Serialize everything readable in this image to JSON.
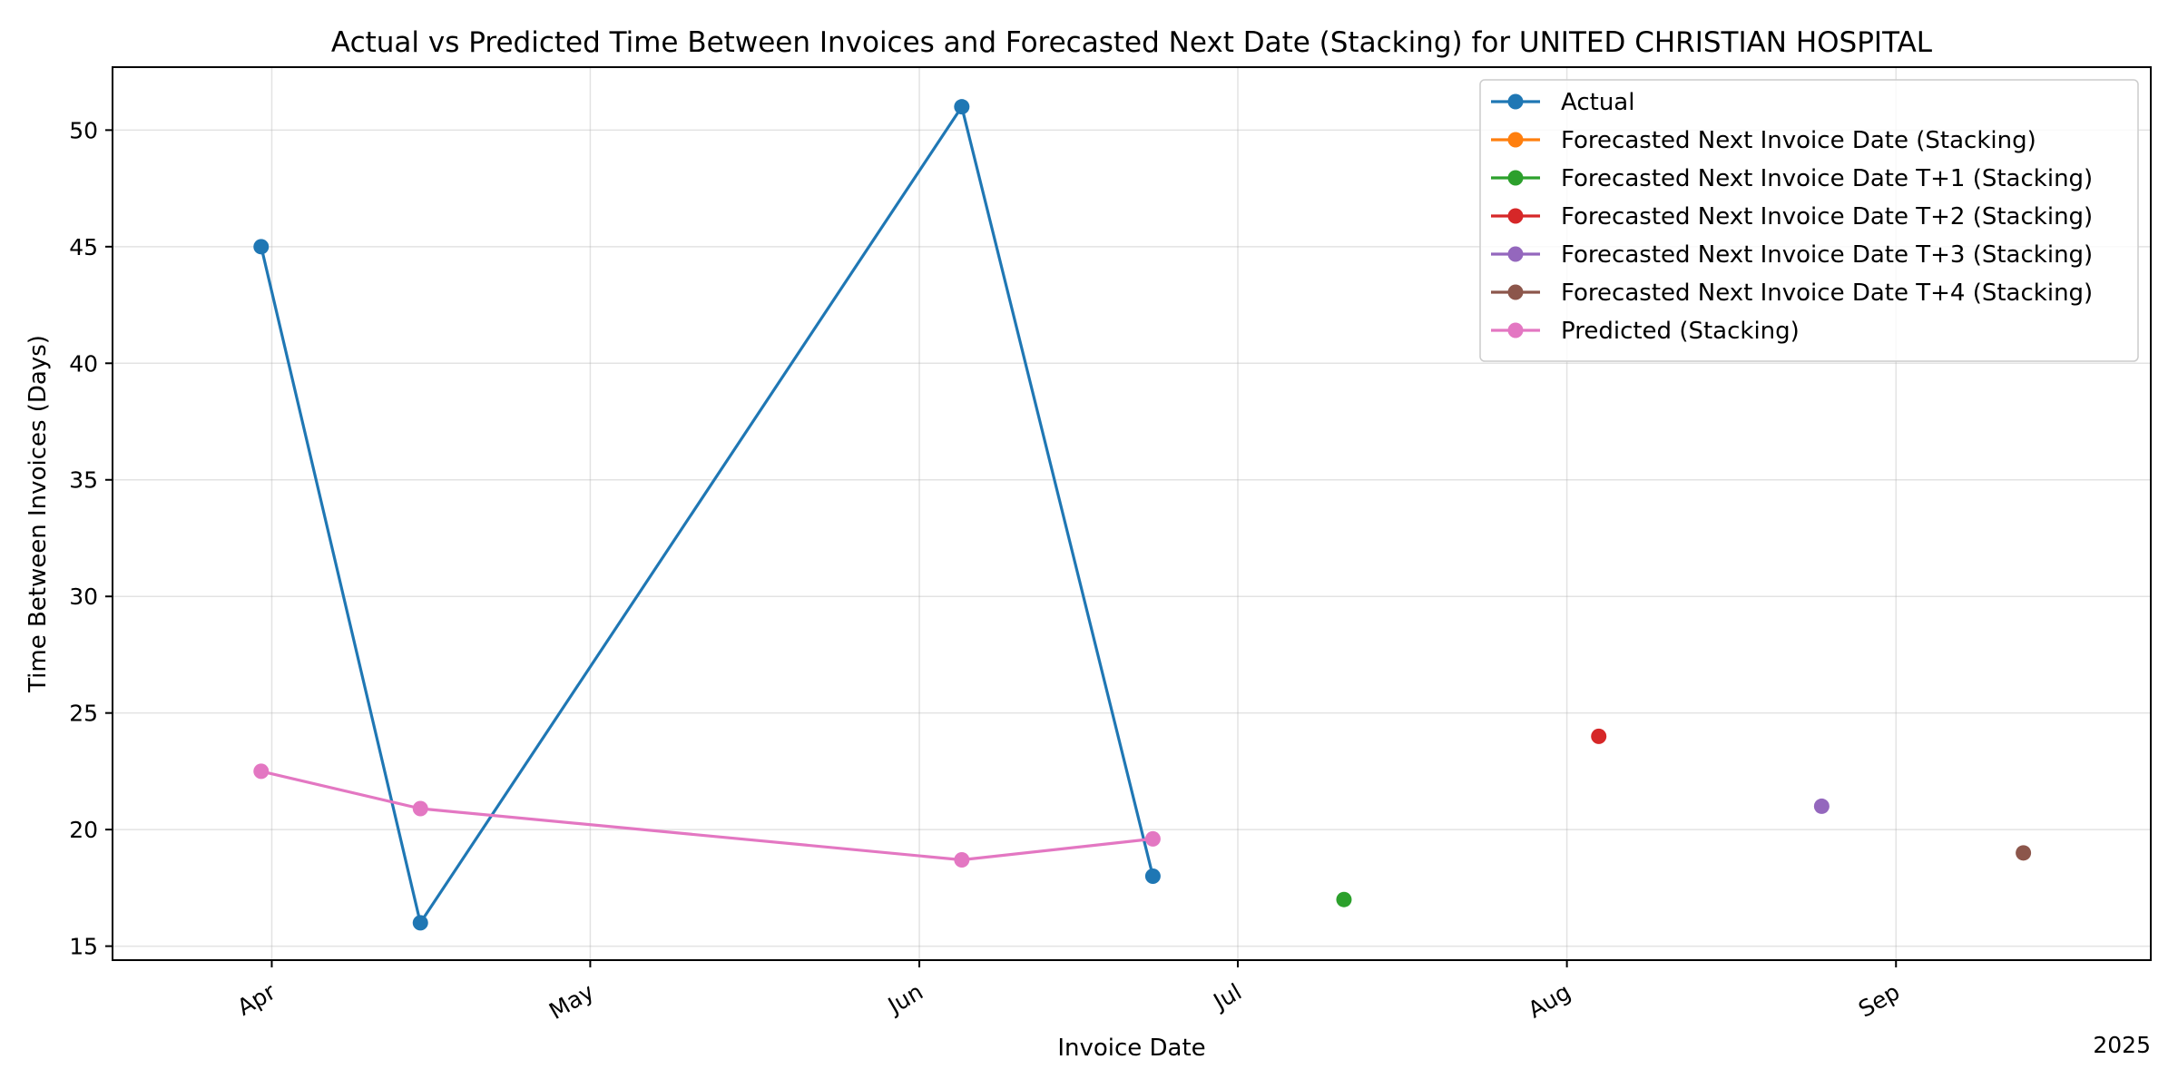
{
  "chart_data": {
    "type": "line",
    "title": "Actual vs Predicted Time Between Invoices and Forecasted Next Date (Stacking) for UNITED CHRISTIAN HOSPITAL",
    "xlabel": "Invoice Date",
    "ylabel": "Time Between Invoices (Days)",
    "x_year_label": "2025",
    "x_axis": {
      "type": "date",
      "range": [
        "2025-03-17",
        "2025-09-25"
      ],
      "ticks": [
        {
          "date": "2025-04-01",
          "label": "Apr"
        },
        {
          "date": "2025-05-01",
          "label": "May"
        },
        {
          "date": "2025-06-01",
          "label": "Jun"
        },
        {
          "date": "2025-07-01",
          "label": "Jul"
        },
        {
          "date": "2025-08-01",
          "label": "Aug"
        },
        {
          "date": "2025-09-01",
          "label": "Sep"
        }
      ]
    },
    "y_axis": {
      "range": [
        14.4,
        52.7
      ],
      "ticks": [
        15,
        20,
        25,
        30,
        35,
        40,
        45,
        50
      ]
    },
    "grid": true,
    "legend_position": "top-right",
    "series": [
      {
        "name": "Actual",
        "color": "#1f77b4",
        "line": true,
        "points": [
          {
            "x": "2025-03-31",
            "y": 45
          },
          {
            "x": "2025-04-15",
            "y": 16
          },
          {
            "x": "2025-06-05",
            "y": 51
          },
          {
            "x": "2025-06-23",
            "y": 18
          }
        ]
      },
      {
        "name": "Forecasted Next Invoice Date (Stacking)",
        "color": "#ff7f0e",
        "line": true,
        "points": []
      },
      {
        "name": "Forecasted Next Invoice Date T+1 (Stacking)",
        "color": "#2ca02c",
        "line": true,
        "points": [
          {
            "x": "2025-07-11",
            "y": 17
          }
        ]
      },
      {
        "name": "Forecasted Next Invoice Date T+2 (Stacking)",
        "color": "#d62728",
        "line": true,
        "points": [
          {
            "x": "2025-08-04",
            "y": 24
          }
        ]
      },
      {
        "name": "Forecasted Next Invoice Date T+3 (Stacking)",
        "color": "#9467bd",
        "line": true,
        "points": [
          {
            "x": "2025-08-25",
            "y": 21
          }
        ]
      },
      {
        "name": "Forecasted Next Invoice Date T+4 (Stacking)",
        "color": "#8c564b",
        "line": true,
        "points": [
          {
            "x": "2025-09-13",
            "y": 19
          }
        ]
      },
      {
        "name": "Predicted (Stacking)",
        "color": "#e377c2",
        "line": true,
        "points": [
          {
            "x": "2025-03-31",
            "y": 22.5
          },
          {
            "x": "2025-04-15",
            "y": 20.9
          },
          {
            "x": "2025-06-05",
            "y": 18.7
          },
          {
            "x": "2025-06-23",
            "y": 19.6
          }
        ]
      }
    ]
  }
}
